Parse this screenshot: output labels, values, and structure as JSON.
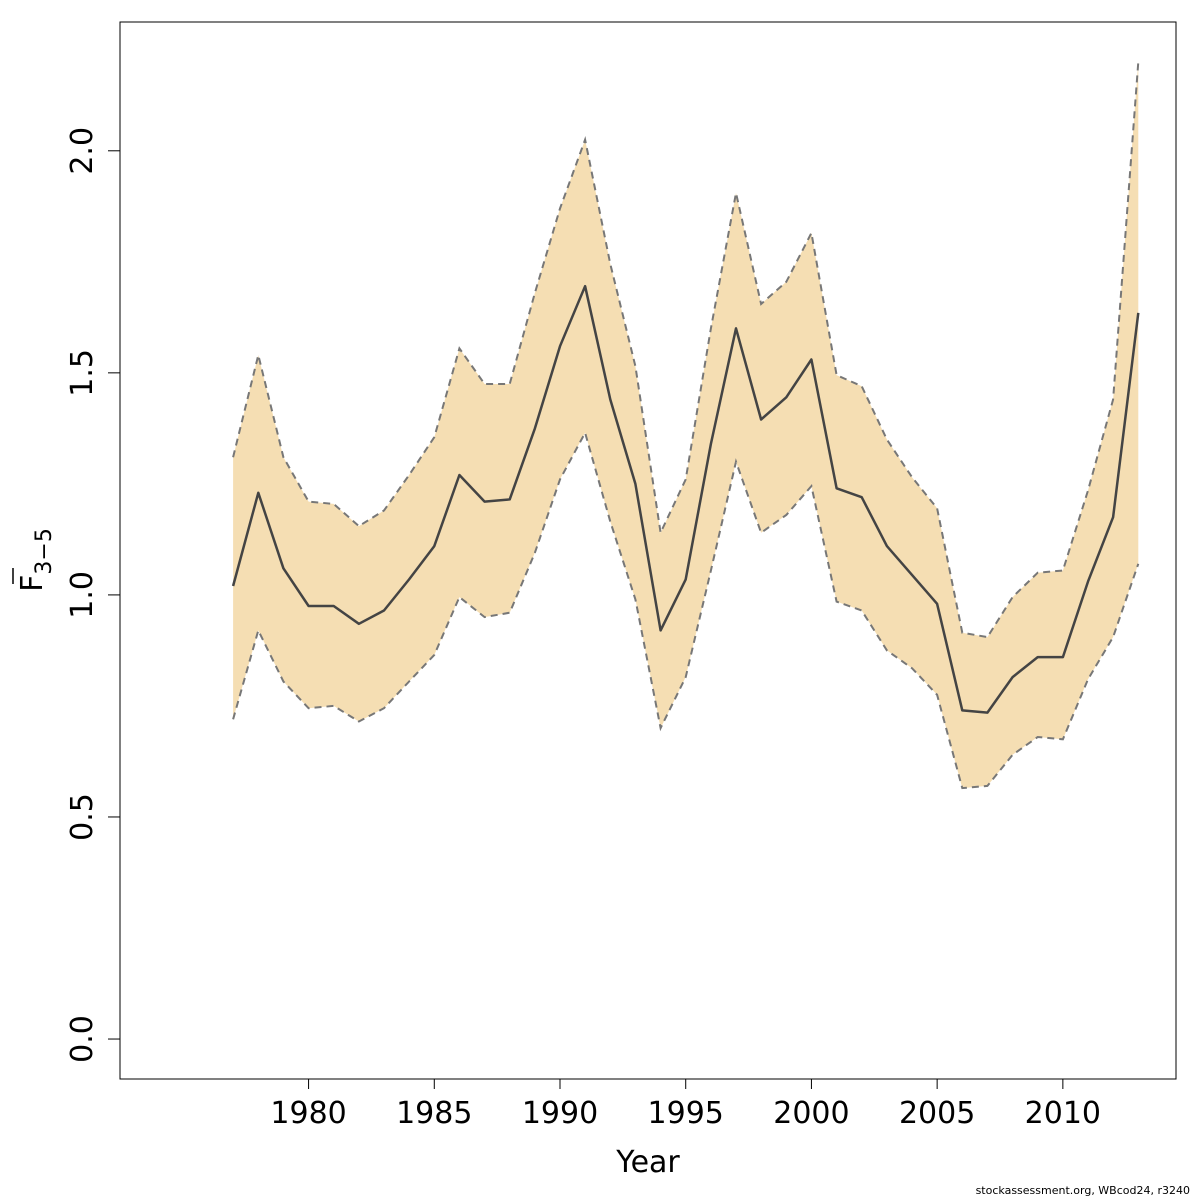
{
  "chart_data": {
    "type": "area",
    "xlabel": "Year",
    "ylabel": "F",
    "ylabel_overline": true,
    "ylabel_subscript": "3−5",
    "x": [
      1977,
      1978,
      1979,
      1980,
      1981,
      1982,
      1983,
      1984,
      1985,
      1986,
      1987,
      1988,
      1989,
      1990,
      1991,
      1992,
      1993,
      1994,
      1995,
      1996,
      1997,
      1998,
      1999,
      2000,
      2001,
      2002,
      2003,
      2004,
      2005,
      2006,
      2007,
      2008,
      2009,
      2010,
      2011,
      2012,
      2013
    ],
    "series": [
      {
        "role": "estimate",
        "values": [
          1.02,
          1.23,
          1.06,
          0.975,
          0.975,
          0.935,
          0.965,
          1.035,
          1.11,
          1.27,
          1.21,
          1.215,
          1.375,
          1.56,
          1.695,
          1.44,
          1.25,
          0.92,
          1.035,
          1.34,
          1.6,
          1.395,
          1.445,
          1.53,
          1.24,
          1.22,
          1.11,
          1.045,
          0.98,
          0.74,
          0.735,
          0.815,
          0.86,
          0.86,
          1.03,
          1.175,
          1.635
        ]
      },
      {
        "role": "upper_bound",
        "values": [
          1.31,
          1.54,
          1.31,
          1.21,
          1.205,
          1.155,
          1.19,
          1.27,
          1.355,
          1.555,
          1.475,
          1.475,
          1.68,
          1.87,
          2.025,
          1.745,
          1.515,
          1.14,
          1.26,
          1.6,
          1.905,
          1.655,
          1.705,
          1.815,
          1.495,
          1.47,
          1.35,
          1.265,
          1.195,
          0.915,
          0.905,
          0.995,
          1.05,
          1.055,
          1.235,
          1.44,
          2.2
        ]
      },
      {
        "role": "lower_bound",
        "values": [
          0.72,
          0.92,
          0.805,
          0.745,
          0.75,
          0.715,
          0.745,
          0.805,
          0.865,
          0.995,
          0.95,
          0.96,
          1.095,
          1.26,
          1.365,
          1.165,
          0.99,
          0.7,
          0.815,
          1.055,
          1.3,
          1.14,
          1.18,
          1.245,
          0.985,
          0.965,
          0.875,
          0.835,
          0.775,
          0.565,
          0.57,
          0.64,
          0.68,
          0.675,
          0.81,
          0.905,
          1.07
        ]
      }
    ],
    "xlim": [
      1972.5,
      2014.5
    ],
    "ylim": [
      -0.09,
      2.29
    ],
    "x_ticks": [
      1980,
      1985,
      1990,
      1995,
      2000,
      2005,
      2010
    ],
    "y_ticks": [
      0.0,
      0.5,
      1.0,
      1.5,
      2.0
    ],
    "x_tick_labels": [
      "1980",
      "1985",
      "1990",
      "1995",
      "2000",
      "2005",
      "2010"
    ],
    "y_tick_labels": [
      "0.0",
      "0.5",
      "1.0",
      "1.5",
      "2.0"
    ],
    "grid": false,
    "colors": {
      "band_fill": "#f5deb3",
      "band_edge": "#777777",
      "line": "#444444",
      "axis": "#000000"
    }
  },
  "footer": "stockassessment.org, WBcod24, r3240"
}
